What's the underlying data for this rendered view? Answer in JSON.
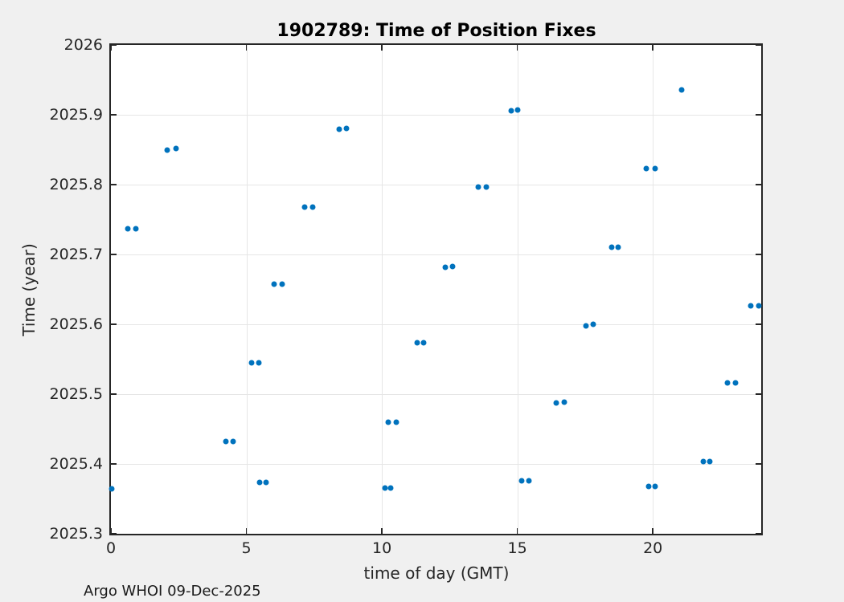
{
  "figure": {
    "title": "1902789: Time of Position Fixes",
    "xlabel": "time of day (GMT)",
    "ylabel": "Time (year)",
    "footer": "Argo WHOI 09-Dec-2025",
    "colors": {
      "marker": "#0072BD",
      "figure_background": "#F0F0F0",
      "plot_background": "#FFFFFF",
      "axis": "#262626",
      "grid": "#E6E6E6"
    }
  },
  "chart_data": {
    "type": "scatter",
    "title": "1902789: Time of Position Fixes",
    "xlabel": "time of day (GMT)",
    "ylabel": "Time (year)",
    "xlim": [
      0,
      24
    ],
    "ylim": [
      2025.3,
      2026
    ],
    "grid": true,
    "legend": null,
    "marker": "point",
    "marker_color": "#0072BD",
    "x_ticks": [
      0,
      5,
      10,
      15,
      20
    ],
    "x_tick_labels": [
      "0",
      "5",
      "10",
      "15",
      "20"
    ],
    "y_ticks": [
      2025.3,
      2025.4,
      2025.5,
      2025.6,
      2025.7,
      2025.8,
      2025.9,
      2026
    ],
    "y_tick_labels": [
      "2025.3",
      "2025.4",
      "2025.5",
      "2025.6",
      "2025.7",
      "2025.8",
      "2025.9",
      "2026"
    ],
    "series": [
      {
        "name": "position-fixes",
        "x": [
          0.02,
          0.61,
          0.91,
          2.09,
          2.4,
          4.23,
          4.51,
          5.18,
          5.47,
          5.5,
          5.74,
          6.01,
          6.31,
          7.14,
          7.45,
          8.42,
          8.69,
          10.11,
          10.31,
          10.24,
          10.52,
          11.29,
          11.53,
          12.33,
          12.62,
          13.56,
          13.85,
          14.77,
          15.02,
          15.15,
          15.43,
          16.44,
          16.73,
          17.53,
          17.81,
          18.49,
          18.72,
          19.77,
          20.07,
          19.85,
          20.07,
          21.07,
          21.86,
          22.11,
          22.74,
          23.04,
          23.6,
          23.9
        ],
        "y": [
          2025.364,
          2025.737,
          2025.737,
          2025.85,
          2025.852,
          2025.432,
          2025.432,
          2025.545,
          2025.545,
          2025.374,
          2025.374,
          2025.657,
          2025.658,
          2025.768,
          2025.768,
          2025.879,
          2025.88,
          2025.365,
          2025.366,
          2025.46,
          2025.46,
          2025.573,
          2025.573,
          2025.682,
          2025.683,
          2025.796,
          2025.797,
          2025.906,
          2025.907,
          2025.376,
          2025.376,
          2025.487,
          2025.488,
          2025.598,
          2025.6,
          2025.71,
          2025.71,
          2025.823,
          2025.823,
          2025.368,
          2025.368,
          2025.936,
          2025.403,
          2025.404,
          2025.516,
          2025.516,
          2025.626,
          2025.627
        ]
      }
    ]
  }
}
